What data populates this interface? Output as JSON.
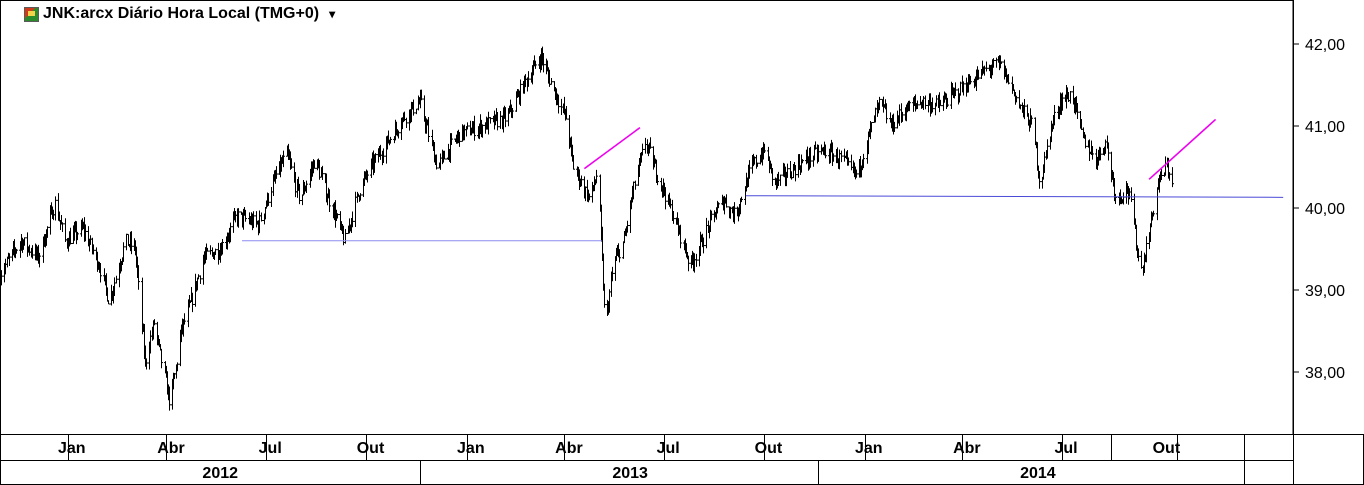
{
  "header": {
    "title": "JNK:arcx Diário Hora Local (TMG+0)",
    "dropdown_icon": "chevron-down-icon"
  },
  "chart_data": {
    "type": "ohlc",
    "symbol": "JNK:arcx",
    "ylim": [
      37.2,
      42.5
    ],
    "yticks": [
      {
        "value": 42,
        "label": "42,00"
      },
      {
        "value": 41,
        "label": "41,00"
      },
      {
        "value": 40,
        "label": "40,00"
      },
      {
        "value": 39,
        "label": "39,00"
      },
      {
        "value": 38,
        "label": "38,00"
      }
    ],
    "xlim": [
      "2011-12-01",
      "2015-03-01"
    ],
    "month_labels": [
      {
        "date": "2012-01-01",
        "label": "Jan"
      },
      {
        "date": "2012-04-01",
        "label": "Abr"
      },
      {
        "date": "2012-07-01",
        "label": "Jul"
      },
      {
        "date": "2012-10-01",
        "label": "Out"
      },
      {
        "date": "2013-01-01",
        "label": "Jan"
      },
      {
        "date": "2013-04-01",
        "label": "Abr"
      },
      {
        "date": "2013-07-01",
        "label": "Jul"
      },
      {
        "date": "2013-10-01",
        "label": "Out"
      },
      {
        "date": "2014-01-01",
        "label": "Jan"
      },
      {
        "date": "2014-04-01",
        "label": "Abr"
      },
      {
        "date": "2014-07-01",
        "label": "Jul"
      },
      {
        "date": "2014-10-01",
        "label": "Out"
      }
    ],
    "month_dividers": [
      "2012-02-01",
      "2012-05-01",
      "2012-08-01",
      "2012-11-01",
      "2013-02-01",
      "2013-05-01",
      "2013-08-01",
      "2013-11-01",
      "2014-02-01",
      "2014-05-01",
      "2014-08-01",
      "2014-09-15",
      "2014-11-15",
      "2015-01-15"
    ],
    "year_labels": [
      {
        "date": "2012-06-20",
        "label": "2012"
      },
      {
        "date": "2013-07-01",
        "label": "2013"
      },
      {
        "date": "2014-07-10",
        "label": "2014"
      }
    ],
    "year_dividers": [
      "2012-12-20",
      "2013-12-20",
      "2015-01-15"
    ],
    "price_path": [
      [
        "2011-12-01",
        39.2
      ],
      [
        "2011-12-20",
        39.6
      ],
      [
        "2012-01-05",
        39.4
      ],
      [
        "2012-01-20",
        40.05
      ],
      [
        "2012-01-30",
        39.6
      ],
      [
        "2012-02-15",
        39.75
      ],
      [
        "2012-03-01",
        39.3
      ],
      [
        "2012-03-10",
        38.85
      ],
      [
        "2012-03-25",
        39.6
      ],
      [
        "2012-04-03",
        39.5
      ],
      [
        "2012-04-12",
        38.1
      ],
      [
        "2012-04-20",
        38.6
      ],
      [
        "2012-05-05",
        37.6
      ],
      [
        "2012-05-15",
        38.5
      ],
      [
        "2012-05-25",
        38.9
      ],
      [
        "2012-06-05",
        39.4
      ],
      [
        "2012-06-20",
        39.5
      ],
      [
        "2012-07-05",
        39.9
      ],
      [
        "2012-07-25",
        39.8
      ],
      [
        "2012-08-10",
        40.4
      ],
      [
        "2012-08-20",
        40.65
      ],
      [
        "2012-09-01",
        40.1
      ],
      [
        "2012-09-15",
        40.6
      ],
      [
        "2012-09-25",
        40.2
      ],
      [
        "2012-10-05",
        39.85
      ],
      [
        "2012-10-12",
        39.6
      ],
      [
        "2012-10-25",
        40.2
      ],
      [
        "2012-11-05",
        40.5
      ],
      [
        "2012-11-20",
        40.8
      ],
      [
        "2012-12-05",
        41.1
      ],
      [
        "2012-12-20",
        41.3
      ],
      [
        "2013-01-05",
        40.5
      ],
      [
        "2013-01-25",
        40.9
      ],
      [
        "2013-02-15",
        41.0
      ],
      [
        "2013-03-10",
        41.1
      ],
      [
        "2013-03-25",
        41.5
      ],
      [
        "2013-04-10",
        41.85
      ],
      [
        "2013-04-20",
        41.5
      ],
      [
        "2013-05-03",
        41.1
      ],
      [
        "2013-05-10",
        40.5
      ],
      [
        "2013-05-25",
        40.1
      ],
      [
        "2013-06-01",
        40.45
      ],
      [
        "2013-06-08",
        38.5
      ],
      [
        "2013-06-15",
        39.3
      ],
      [
        "2013-06-25",
        39.6
      ],
      [
        "2013-07-05",
        40.3
      ],
      [
        "2013-07-15",
        40.8
      ],
      [
        "2013-08-01",
        40.2
      ],
      [
        "2013-08-15",
        39.7
      ],
      [
        "2013-08-25",
        39.3
      ],
      [
        "2013-09-05",
        39.6
      ],
      [
        "2013-09-15",
        39.9
      ],
      [
        "2013-09-25",
        40.1
      ],
      [
        "2013-10-05",
        39.9
      ],
      [
        "2013-10-20",
        40.5
      ],
      [
        "2013-11-01",
        40.7
      ],
      [
        "2013-11-10",
        40.3
      ],
      [
        "2013-11-25",
        40.45
      ],
      [
        "2013-12-10",
        40.6
      ],
      [
        "2013-12-25",
        40.7
      ],
      [
        "2014-01-10",
        40.6
      ],
      [
        "2014-01-25",
        40.4
      ],
      [
        "2014-02-05",
        40.9
      ],
      [
        "2014-02-15",
        41.3
      ],
      [
        "2014-02-25",
        41.0
      ],
      [
        "2014-03-10",
        41.2
      ],
      [
        "2014-03-25",
        41.3
      ],
      [
        "2014-04-10",
        41.25
      ],
      [
        "2014-04-25",
        41.4
      ],
      [
        "2014-05-10",
        41.55
      ],
      [
        "2014-05-25",
        41.7
      ],
      [
        "2014-06-05",
        41.75
      ],
      [
        "2014-06-15",
        41.5
      ],
      [
        "2014-06-25",
        41.2
      ],
      [
        "2014-07-05",
        41.0
      ],
      [
        "2014-07-12",
        40.25
      ],
      [
        "2014-07-20",
        40.9
      ],
      [
        "2014-07-30",
        41.3
      ],
      [
        "2014-08-10",
        41.4
      ],
      [
        "2014-08-20",
        40.85
      ],
      [
        "2014-09-01",
        40.6
      ],
      [
        "2014-09-10",
        40.8
      ],
      [
        "2014-09-20",
        40.1
      ],
      [
        "2014-09-30",
        40.25
      ],
      [
        "2014-10-05",
        39.9
      ],
      [
        "2014-10-12",
        39.2
      ],
      [
        "2014-10-20",
        39.7
      ],
      [
        "2014-10-28",
        40.3
      ],
      [
        "2014-11-05",
        40.5
      ],
      [
        "2014-11-10",
        40.35
      ]
    ],
    "trendlines": [
      {
        "id": "support-2012-2013",
        "color": "#8c8cf0",
        "from": [
          "2012-07-10",
          39.6
        ],
        "to": [
          "2013-06-05",
          39.6
        ]
      },
      {
        "id": "support-2013-2014",
        "color": "#4a4ad8",
        "from": [
          "2013-10-15",
          40.15
        ],
        "to": [
          "2015-02-20",
          40.13
        ]
      },
      {
        "id": "rising-2013",
        "color": "#ee00ee",
        "from": [
          "2013-05-20",
          40.48
        ],
        "to": [
          "2013-07-10",
          40.98
        ]
      },
      {
        "id": "rising-2014",
        "color": "#ee00ee",
        "from": [
          "2014-10-20",
          40.35
        ],
        "to": [
          "2014-12-20",
          41.08
        ]
      }
    ],
    "colors": {
      "bars": "#000000",
      "axis": "#000000",
      "background": "#ffffff"
    }
  }
}
